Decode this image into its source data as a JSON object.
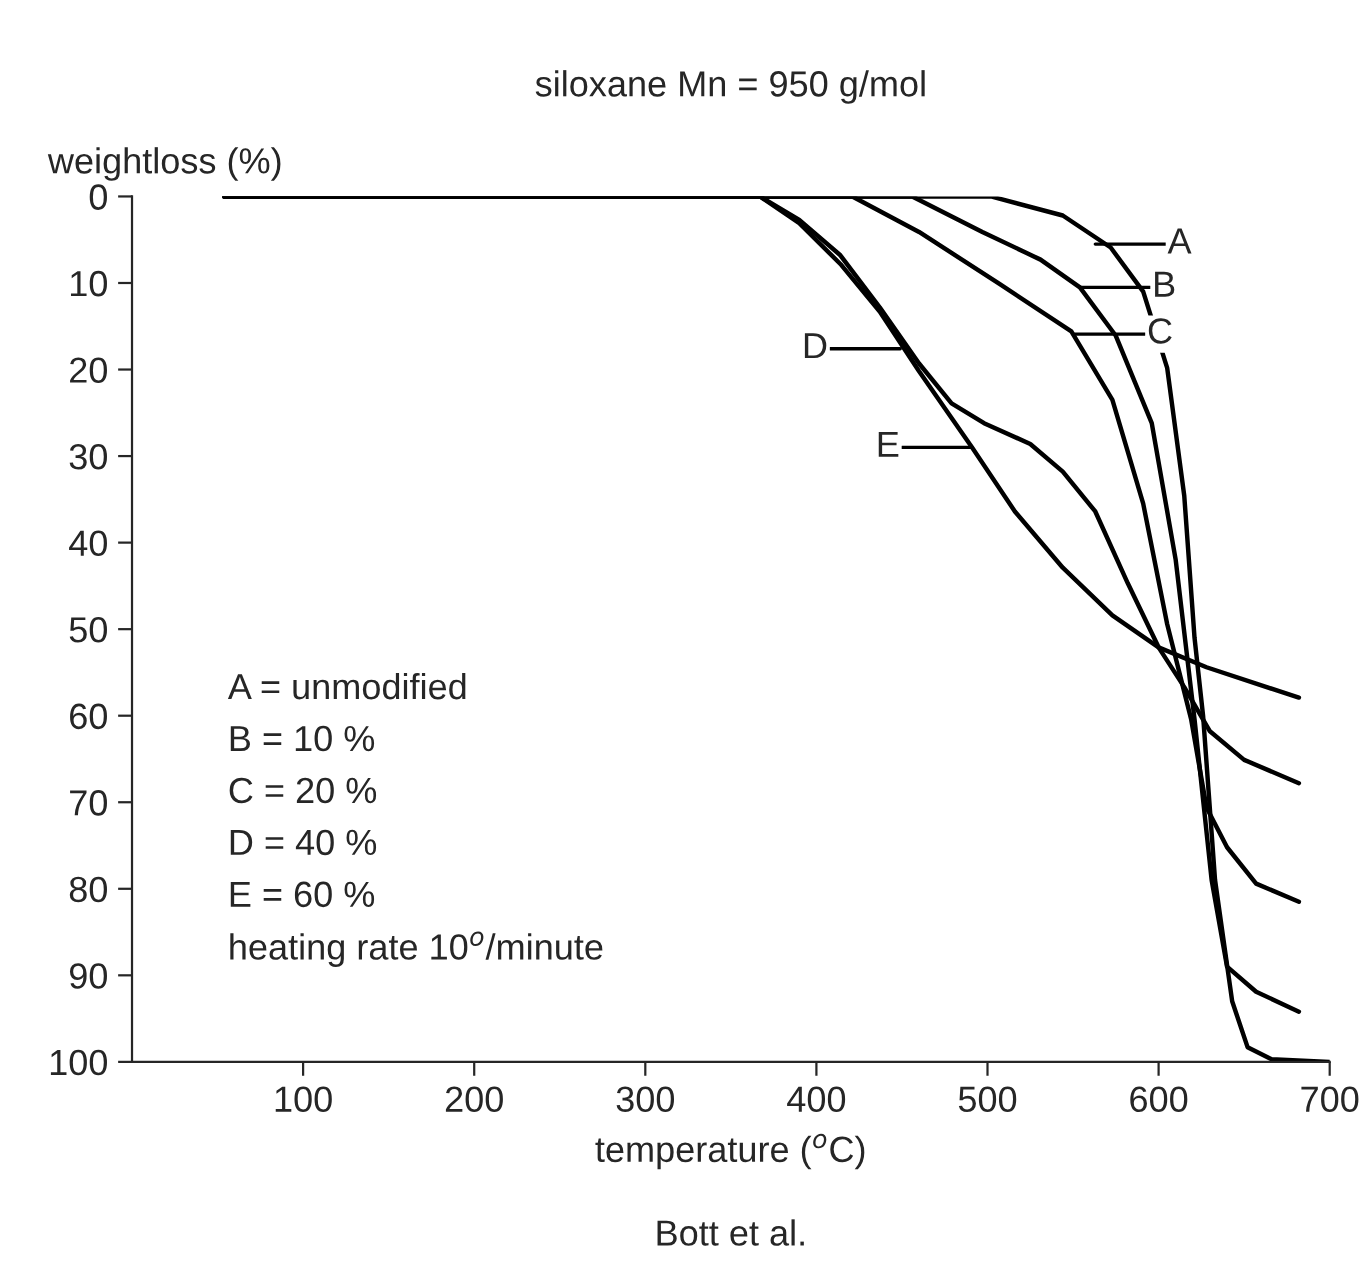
{
  "chart_data": {
    "type": "line",
    "title": "siloxane Mn = 950 g/mol",
    "xlabel": "temperature ($^{o}$C)",
    "ylabel": "weightloss (%)",
    "xlim": [
      0,
      700
    ],
    "xticks": [
      100,
      200,
      300,
      400,
      500,
      600,
      700
    ],
    "ylim": [
      100,
      0
    ],
    "yticks": [
      0,
      10,
      20,
      30,
      40,
      50,
      60,
      70,
      80,
      90,
      100
    ],
    "grid": false,
    "legend": false,
    "marker": "none",
    "line_style": "solid",
    "series": [
      {
        "color": "#000000",
        "x": [
          54,
          502,
          544,
          572,
          591,
          605,
          615,
          621,
          626,
          633,
          643,
          652,
          666,
          700
        ],
        "values": [
          0,
          0,
          2.2,
          5.9,
          11,
          19.8,
          34.6,
          51,
          60,
          79,
          93,
          98.3,
          99.7,
          100
        ]
      },
      {
        "color": "#000000",
        "x": [
          54,
          456,
          497,
          531,
          554,
          575,
          596,
          610,
          621,
          631,
          640,
          657,
          682
        ],
        "values": [
          0,
          0,
          4.1,
          7.3,
          10.5,
          16.1,
          26.2,
          42,
          60.4,
          79,
          89,
          91.9,
          94.2
        ]
      },
      {
        "color": "#000000",
        "x": [
          54,
          421,
          460,
          507,
          549,
          573,
          591,
          605,
          619,
          628,
          640,
          657,
          682
        ],
        "values": [
          0,
          0,
          4.1,
          10.1,
          15.6,
          23.5,
          35.5,
          49.4,
          60.4,
          70.6,
          75.2,
          79.4,
          81.5
        ]
      },
      {
        "color": "#000000",
        "x": [
          54,
          367,
          390,
          414,
          437,
          460,
          479,
          498,
          525,
          544,
          563,
          582,
          600,
          615,
          630,
          650,
          682
        ],
        "values": [
          0,
          0,
          2.7,
          6.8,
          12.8,
          19.3,
          23.9,
          26.2,
          28.6,
          31.8,
          36.4,
          44.7,
          52.1,
          56.7,
          61.8,
          65.1,
          67.8
        ]
      },
      {
        "color": "#000000",
        "x": [
          54,
          367,
          390,
          414,
          437,
          460,
          491,
          516,
          544,
          573,
          600,
          628,
          657,
          682
        ],
        "values": [
          0,
          0,
          3.1,
          7.8,
          13.3,
          20.2,
          29,
          36.4,
          42.9,
          48.4,
          52.1,
          54.4,
          56.3,
          57.9
        ]
      }
    ],
    "annotations": [
      {
        "text": "A",
        "x": 563,
        "y": 5.5
      },
      {
        "text": "B",
        "x": 554,
        "y": 10.5
      },
      {
        "text": "C",
        "x": 551,
        "y": 15.9
      },
      {
        "text": "D",
        "x": 449,
        "y": 17.6
      },
      {
        "text": "E",
        "x": 491,
        "y": 29
      },
      "A = unmodified",
      "B = 10 %",
      "C = 20 %",
      "D = 40 %",
      "E = 60 %",
      "heating rate 10$^{o}$/minute",
      "Bott et al."
    ]
  }
}
